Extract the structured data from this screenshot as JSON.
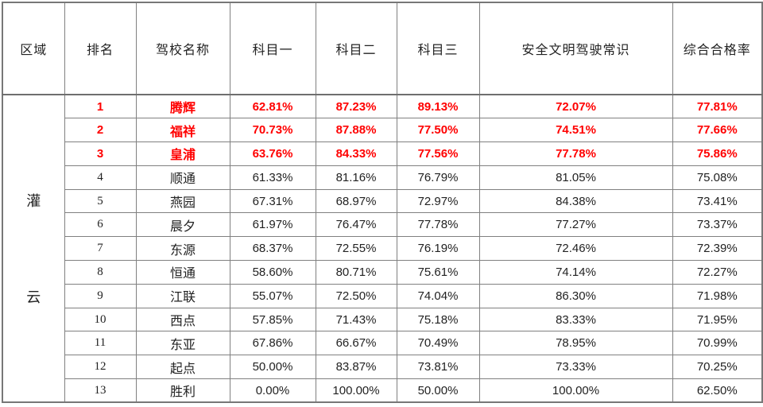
{
  "table": {
    "headers": [
      "区域",
      "排名",
      "驾校名称",
      "科目一",
      "科目二",
      "科目三",
      "安全文明驾驶常识",
      "综合合格率"
    ],
    "region": "灌云",
    "region_chars": [
      "灌",
      "云"
    ],
    "colors": {
      "highlight_text": "#ff0000",
      "normal_text": "#222222",
      "border": "#808080",
      "background": "#ffffff"
    },
    "rows": [
      {
        "rank": "1",
        "school": "腾辉",
        "subject1": "62.81%",
        "subject2": "87.23%",
        "subject3": "89.13%",
        "safety": "72.07%",
        "overall": "77.81%",
        "highlight": true
      },
      {
        "rank": "2",
        "school": "福祥",
        "subject1": "70.73%",
        "subject2": "87.88%",
        "subject3": "77.50%",
        "safety": "74.51%",
        "overall": "77.66%",
        "highlight": true
      },
      {
        "rank": "3",
        "school": "皇浦",
        "subject1": "63.76%",
        "subject2": "84.33%",
        "subject3": "77.56%",
        "safety": "77.78%",
        "overall": "75.86%",
        "highlight": true
      },
      {
        "rank": "4",
        "school": "顺通",
        "subject1": "61.33%",
        "subject2": "81.16%",
        "subject3": "76.79%",
        "safety": "81.05%",
        "overall": "75.08%",
        "highlight": false
      },
      {
        "rank": "5",
        "school": "燕园",
        "subject1": "67.31%",
        "subject2": "68.97%",
        "subject3": "72.97%",
        "safety": "84.38%",
        "overall": "73.41%",
        "highlight": false
      },
      {
        "rank": "6",
        "school": "晨夕",
        "subject1": "61.97%",
        "subject2": "76.47%",
        "subject3": "77.78%",
        "safety": "77.27%",
        "overall": "73.37%",
        "highlight": false
      },
      {
        "rank": "7",
        "school": "东源",
        "subject1": "68.37%",
        "subject2": "72.55%",
        "subject3": "76.19%",
        "safety": "72.46%",
        "overall": "72.39%",
        "highlight": false
      },
      {
        "rank": "8",
        "school": "恒通",
        "subject1": "58.60%",
        "subject2": "80.71%",
        "subject3": "75.61%",
        "safety": "74.14%",
        "overall": "72.27%",
        "highlight": false
      },
      {
        "rank": "9",
        "school": "江联",
        "subject1": "55.07%",
        "subject2": "72.50%",
        "subject3": "74.04%",
        "safety": "86.30%",
        "overall": "71.98%",
        "highlight": false
      },
      {
        "rank": "10",
        "school": "西点",
        "subject1": "57.85%",
        "subject2": "71.43%",
        "subject3": "75.18%",
        "safety": "83.33%",
        "overall": "71.95%",
        "highlight": false
      },
      {
        "rank": "11",
        "school": "东亚",
        "subject1": "67.86%",
        "subject2": "66.67%",
        "subject3": "70.49%",
        "safety": "78.95%",
        "overall": "70.99%",
        "highlight": false
      },
      {
        "rank": "12",
        "school": "起点",
        "subject1": "50.00%",
        "subject2": "83.87%",
        "subject3": "73.81%",
        "safety": "73.33%",
        "overall": "70.25%",
        "highlight": false
      },
      {
        "rank": "13",
        "school": "胜利",
        "subject1": "0.00%",
        "subject2": "100.00%",
        "subject3": "50.00%",
        "safety": "100.00%",
        "overall": "62.50%",
        "highlight": false
      }
    ]
  }
}
